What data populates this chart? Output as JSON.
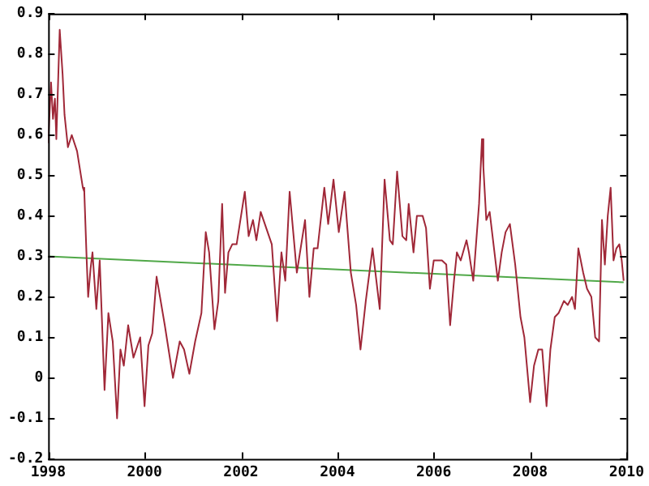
{
  "chart_data": {
    "type": "line",
    "xlim": [
      1998,
      2010
    ],
    "xticks": [
      1998,
      2000,
      2002,
      2004,
      2006,
      2008,
      2010
    ],
    "ylim": [
      -0.2,
      0.9
    ],
    "yticks": [
      -0.2,
      -0.1,
      0,
      0.1,
      0.2,
      0.3,
      0.4,
      0.5,
      0.6,
      0.7,
      0.8,
      0.9
    ],
    "grid": false,
    "legend": false,
    "marker": "none",
    "line_style": "solid",
    "series": [
      {
        "color": "#a02838",
        "x": [
          1998.0,
          1998.06,
          1998.1,
          1998.14,
          1998.17,
          1998.24,
          1998.3,
          1998.34,
          1998.41,
          1998.49,
          1998.6,
          1998.72,
          1998.75,
          1998.8,
          1998.83,
          1998.88,
          1998.92,
          1999.0,
          1999.07,
          1999.17,
          1999.25,
          1999.34,
          1999.43,
          1999.5,
          1999.57,
          1999.66,
          1999.77,
          1999.91,
          2000.0,
          2000.08,
          2000.16,
          2000.25,
          2000.42,
          2000.59,
          2000.73,
          2000.82,
          2000.93,
          2001.05,
          2001.18,
          2001.27,
          2001.34,
          2001.45,
          2001.53,
          2001.61,
          2001.67,
          2001.74,
          2001.82,
          2001.91,
          2002.08,
          2002.16,
          2002.25,
          2002.32,
          2002.41,
          2002.64,
          2002.75,
          2002.84,
          2002.92,
          2003.01,
          2003.16,
          2003.33,
          2003.42,
          2003.51,
          2003.59,
          2003.73,
          2003.81,
          2003.92,
          2004.03,
          2004.15,
          2004.28,
          2004.39,
          2004.48,
          2004.59,
          2004.73,
          2004.88,
          2004.98,
          2005.09,
          2005.15,
          2005.24,
          2005.35,
          2005.43,
          2005.48,
          2005.58,
          2005.65,
          2005.77,
          2005.84,
          2005.92,
          2006.0,
          2006.17,
          2006.26,
          2006.34,
          2006.42,
          2006.48,
          2006.56,
          2006.68,
          2006.73,
          2006.82,
          2006.94,
          2007.0,
          2007.03,
          2007.09,
          2007.16,
          2007.33,
          2007.41,
          2007.49,
          2007.58,
          2007.69,
          2007.8,
          2007.88,
          2008.0,
          2008.08,
          2008.17,
          2008.25,
          2008.34,
          2008.42,
          2008.51,
          2008.59,
          2008.7,
          2008.78,
          2008.87,
          2008.93,
          2009.0,
          2009.1,
          2009.18,
          2009.27,
          2009.35,
          2009.43,
          2009.49,
          2009.55,
          2009.61,
          2009.67,
          2009.73,
          2009.79,
          2009.85,
          2009.9,
          2009.94
        ],
        "values": [
          0.58,
          0.73,
          0.64,
          0.69,
          0.59,
          0.86,
          0.75,
          0.65,
          0.57,
          0.6,
          0.56,
          0.47,
          0.46,
          0.29,
          0.2,
          0.27,
          0.31,
          0.17,
          0.29,
          -0.03,
          0.16,
          0.09,
          -0.1,
          0.07,
          0.03,
          0.13,
          0.05,
          0.1,
          -0.07,
          0.08,
          0.11,
          0.25,
          0.13,
          0.0,
          0.09,
          0.07,
          0.01,
          0.09,
          0.16,
          0.36,
          0.31,
          0.12,
          0.19,
          0.43,
          0.21,
          0.31,
          0.33,
          0.33,
          0.46,
          0.35,
          0.39,
          0.34,
          0.41,
          0.33,
          0.14,
          0.31,
          0.24,
          0.46,
          0.26,
          0.39,
          0.2,
          0.32,
          0.32,
          0.47,
          0.38,
          0.49,
          0.36,
          0.46,
          0.26,
          0.18,
          0.07,
          0.19,
          0.32,
          0.17,
          0.49,
          0.34,
          0.33,
          0.51,
          0.35,
          0.34,
          0.43,
          0.31,
          0.4,
          0.4,
          0.37,
          0.22,
          0.29,
          0.29,
          0.28,
          0.13,
          0.24,
          0.31,
          0.29,
          0.34,
          0.31,
          0.24,
          0.43,
          0.59,
          0.52,
          0.39,
          0.41,
          0.24,
          0.31,
          0.36,
          0.38,
          0.28,
          0.15,
          0.1,
          -0.06,
          0.03,
          0.07,
          0.07,
          -0.07,
          0.07,
          0.15,
          0.16,
          0.19,
          0.18,
          0.2,
          0.17,
          0.32,
          0.26,
          0.22,
          0.2,
          0.1,
          0.09,
          0.39,
          0.28,
          0.4,
          0.47,
          0.29,
          0.32,
          0.33,
          0.29,
          0.24
        ]
      },
      {
        "color": "#50a848",
        "x": [
          1998.0,
          2009.94
        ],
        "values": [
          0.3,
          0.236
        ]
      }
    ]
  }
}
